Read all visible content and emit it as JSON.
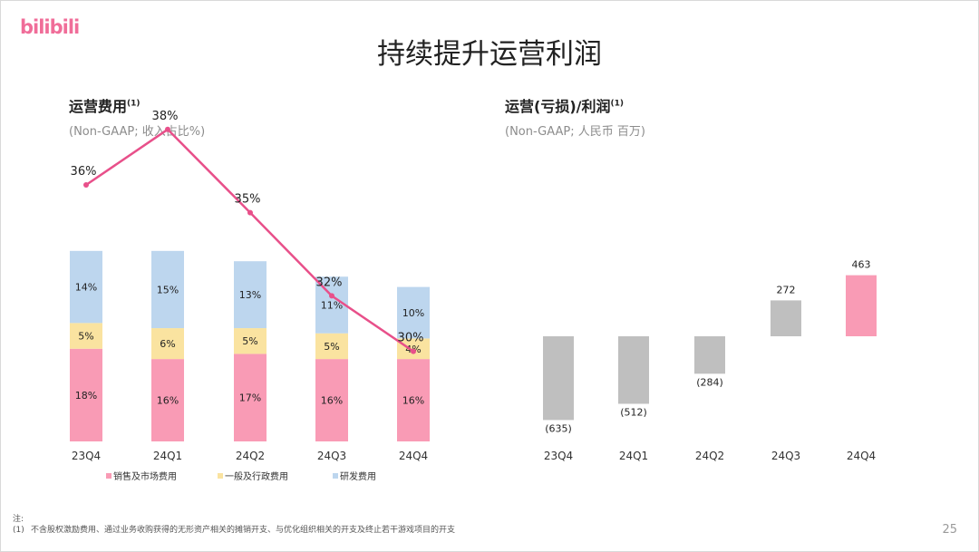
{
  "brand": "bilibili",
  "title": "持续提升运营利润",
  "left": {
    "title": "运营费用",
    "title_sup": "(1)",
    "subtitle": "(Non-GAAP; 收入占比%)"
  },
  "right": {
    "title": "运营(亏损)/利润",
    "title_sup": "(1)",
    "subtitle": "(Non-GAAP; 人民币 百万)"
  },
  "footnote_label": "注:",
  "footnote": {
    "num": "(1)",
    "text": "不含股权激励费用、通过业务收购获得的无形资产相关的摊销开支、与优化组织相关的开支及终止若干游戏项目的开支"
  },
  "page_number": "25",
  "chart_data": [
    {
      "type": "bar",
      "stacked": true,
      "categories": [
        "23Q4",
        "24Q1",
        "24Q2",
        "24Q3",
        "24Q4"
      ],
      "series": [
        {
          "name": "销售及市场费用",
          "values": [
            18,
            16,
            17,
            16,
            16
          ],
          "color": "#f99bb5"
        },
        {
          "name": "一般及行政费用",
          "values": [
            5,
            6,
            5,
            5,
            4
          ],
          "color": "#fae3a0"
        },
        {
          "name": "研发费用",
          "values": [
            14,
            15,
            13,
            11,
            10
          ],
          "color": "#bdd6ee"
        }
      ],
      "line": {
        "values": [
          36,
          38,
          35,
          32,
          30
        ],
        "color": "#e8508a"
      },
      "value_suffix": "%",
      "legend": "bottom"
    },
    {
      "type": "bar",
      "categories": [
        "23Q4",
        "24Q1",
        "24Q2",
        "24Q3",
        "24Q4"
      ],
      "values": [
        -635,
        -512,
        -284,
        272,
        463
      ],
      "labels": [
        "(635)",
        "(512)",
        "(284)",
        "272",
        "463"
      ],
      "colors": [
        "#bfbfbf",
        "#bfbfbf",
        "#bfbfbf",
        "#bfbfbf",
        "#f99bb5"
      ]
    }
  ]
}
